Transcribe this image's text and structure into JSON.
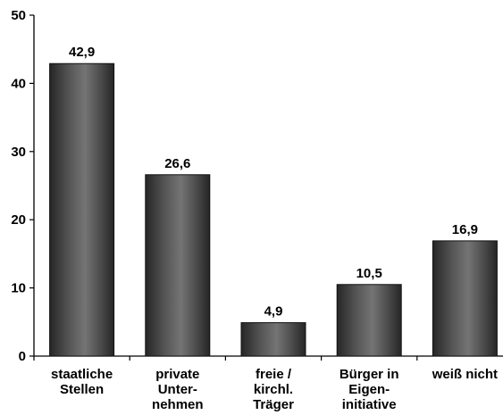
{
  "chart_data": {
    "type": "bar",
    "categories": [
      [
        "staatliche",
        "Stellen"
      ],
      [
        "private",
        "Unter-",
        "nehmen"
      ],
      [
        "freie /",
        "kirchl.",
        "Träger"
      ],
      [
        "Bürger in",
        "Eigen-",
        "initiative"
      ],
      [
        "weiß nicht"
      ]
    ],
    "values": [
      42.9,
      26.6,
      4.9,
      10.5,
      16.9
    ],
    "value_labels": [
      "42,9",
      "26,6",
      "4,9",
      "10,5",
      "16,9"
    ],
    "ylim": [
      0,
      50
    ],
    "yticks": [
      0,
      10,
      20,
      30,
      40,
      50
    ],
    "title": "",
    "xlabel": "",
    "ylabel": "",
    "grid": false,
    "legend": "none",
    "colors": {
      "bar_dark": "#2a2a2a",
      "bar_light": "#7a7a7a",
      "axis": "#000000"
    }
  }
}
